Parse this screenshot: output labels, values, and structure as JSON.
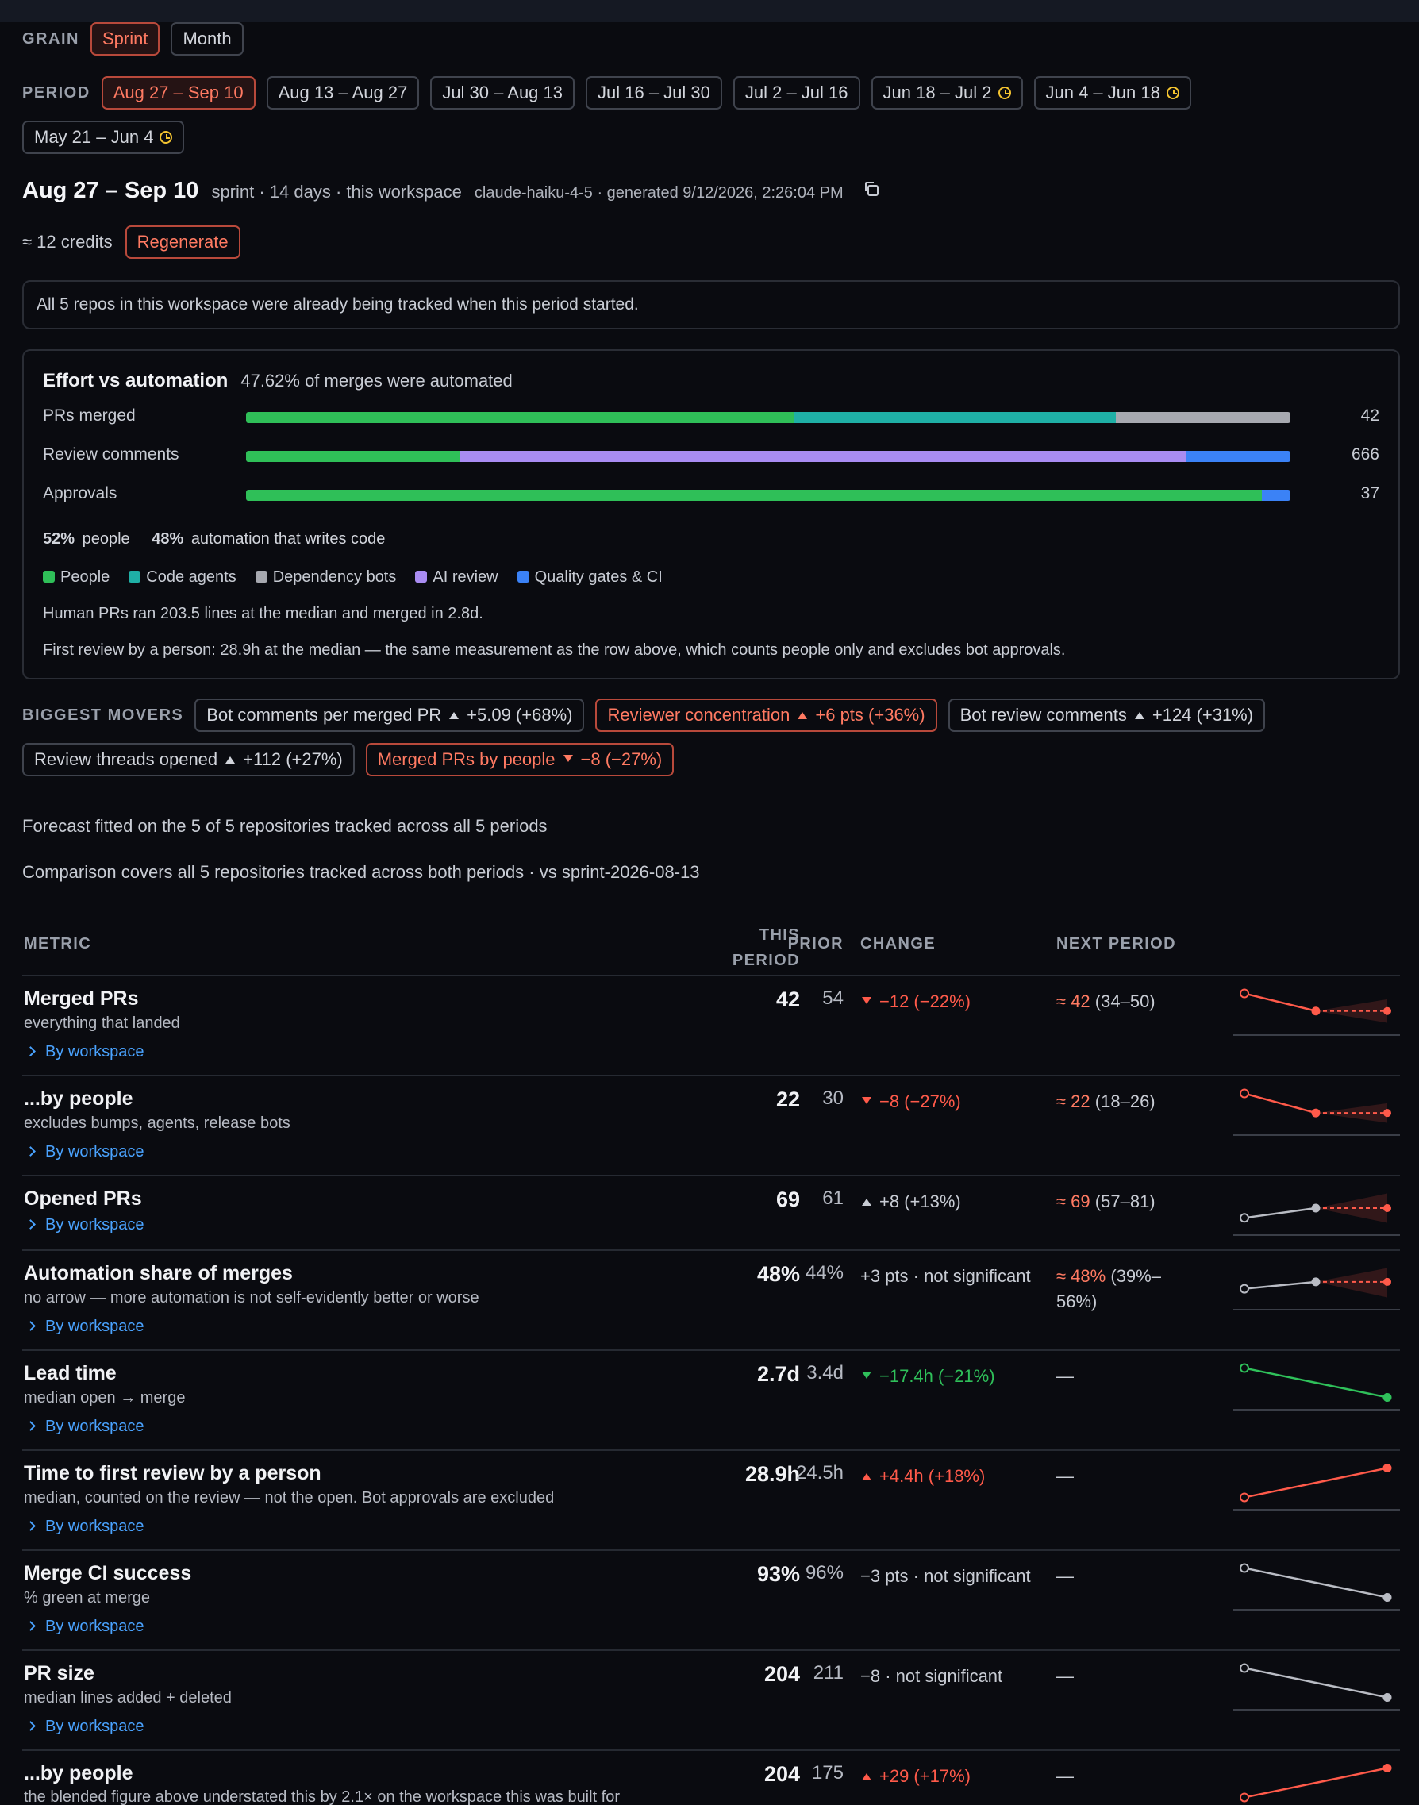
{
  "grain": {
    "label": "GRAIN",
    "options": [
      "Sprint",
      "Month"
    ],
    "selected": "Sprint"
  },
  "period": {
    "label": "PERIOD",
    "options": [
      {
        "text": "Aug 27 – Sep 10",
        "active": true,
        "pending": false
      },
      {
        "text": "Aug 13 – Aug 27",
        "active": false,
        "pending": false
      },
      {
        "text": "Jul 30 – Aug 13",
        "active": false,
        "pending": false
      },
      {
        "text": "Jul 16 – Jul 30",
        "active": false,
        "pending": false
      },
      {
        "text": "Jul 2 – Jul 16",
        "active": false,
        "pending": false
      },
      {
        "text": "Jun 18 – Jul 2",
        "active": false,
        "pending": true
      },
      {
        "text": "Jun 4 – Jun 18",
        "active": false,
        "pending": true
      },
      {
        "text": "May 21 – Jun 4",
        "active": false,
        "pending": true
      }
    ]
  },
  "header": {
    "title": "Aug 27 – Sep 10",
    "meta": "sprint · 14 days · this workspace",
    "model": "claude-haiku-4-5 · generated 9/12/2026, 2:26:04 PM",
    "credits": "≈ 12 credits",
    "regenerate": "Regenerate"
  },
  "notice": "All 5 repos in this workspace were already being tracked when this period started.",
  "effort": {
    "title": "Effort vs automation",
    "subtitle": "47.62% of merges were automated",
    "bars": [
      {
        "label": "PRs merged",
        "total": "42",
        "segments": [
          {
            "name": "People",
            "share": 0.524
          },
          {
            "name": "Code agents",
            "share": 0.309
          },
          {
            "name": "Dependency bots",
            "share": 0.167
          }
        ]
      },
      {
        "label": "Review comments",
        "total": "666",
        "segments": [
          {
            "name": "People",
            "share": 0.205
          },
          {
            "name": "AI review",
            "share": 0.695
          },
          {
            "name": "Quality gates & CI",
            "share": 0.1
          }
        ]
      },
      {
        "label": "Approvals",
        "total": "37",
        "segments": [
          {
            "name": "People",
            "share": 0.973
          },
          {
            "name": "Quality gates & CI",
            "share": 0.027
          }
        ]
      }
    ],
    "split_people_pct": "52%",
    "split_people_text": "people",
    "split_auto_pct": "48%",
    "split_auto_text": "automation that writes code",
    "legend": [
      {
        "name": "People",
        "color": "#2fbf58"
      },
      {
        "name": "Code agents",
        "color": "#1fb0a6"
      },
      {
        "name": "Dependency bots",
        "color": "#a7a9b0"
      },
      {
        "name": "AI review",
        "color": "#a98cf2"
      },
      {
        "name": "Quality gates & CI",
        "color": "#3b82f6"
      }
    ],
    "note1": "Human PRs ran 203.5 lines at the median and merged in 2.8d.",
    "note2": "First review by a person: 28.9h at the median — the same measurement as the row above, which counts people only and excludes bot approvals."
  },
  "movers": {
    "label": "BIGGEST MOVERS",
    "items": [
      {
        "name": "Bot comments per merged PR",
        "dir": "up",
        "delta": "+5.09 (+68%)",
        "flag": false
      },
      {
        "name": "Reviewer concentration",
        "dir": "up",
        "delta": "+6 pts (+36%)",
        "flag": true
      },
      {
        "name": "Bot review comments",
        "dir": "up",
        "delta": "+124 (+31%)",
        "flag": false
      },
      {
        "name": "Review threads opened",
        "dir": "up",
        "delta": "+112 (+27%)",
        "flag": false
      },
      {
        "name": "Merged PRs by people",
        "dir": "down",
        "delta": "−8 (−27%)",
        "flag": true
      }
    ]
  },
  "forecast_note": "Forecast fitted on the 5 of 5 repositories tracked across all 5 periods",
  "comparison_note": "Comparison covers all 5 repositories tracked across both periods · vs sprint-2026-08-13",
  "table": {
    "headers": {
      "metric": "METRIC",
      "this_a": "THIS",
      "this_b": "PERIOD",
      "prior": "PRIOR",
      "change": "CHANGE",
      "next": "NEXT PERIOD"
    },
    "link_label": "By workspace",
    "rows": [
      {
        "name": "Merged PRs",
        "desc": "everything that landed",
        "value": "42",
        "prior": "54",
        "change_dir": "down",
        "change": "−12 (−22%)",
        "change_tone": "bad",
        "next_est": "≈ 42",
        "next_range": "(34–50)",
        "spark": {
          "values": [
            54,
            42
          ],
          "forecast": [
            42,
            34,
            50
          ],
          "tone": "bad"
        }
      },
      {
        "name": "...by people",
        "desc": "excludes bumps, agents, release bots",
        "value": "22",
        "prior": "30",
        "change_dir": "down",
        "change": "−8 (−27%)",
        "change_tone": "bad",
        "next_est": "≈ 22",
        "next_range": "(18–26)",
        "spark": {
          "values": [
            30,
            22
          ],
          "forecast": [
            22,
            18,
            26
          ],
          "tone": "bad"
        }
      },
      {
        "name": "Opened PRs",
        "desc": "",
        "value": "69",
        "prior": "61",
        "change_dir": "up",
        "change": "+8 (+13%)",
        "change_tone": "neutral",
        "next_est": "≈ 69",
        "next_range": "(57–81)",
        "spark": {
          "values": [
            61,
            69
          ],
          "forecast": [
            69,
            57,
            81
          ],
          "tone": "neutral"
        }
      },
      {
        "name": "Automation share of merges",
        "desc": "no arrow — more automation is not self-evidently better or worse",
        "value": "48%",
        "prior": "44%",
        "change_dir": "none",
        "change": "+3 pts · not significant",
        "change_tone": "neutral",
        "next_est": "≈ 48%",
        "next_range": "(39%–56%)",
        "spark": {
          "values": [
            44,
            48
          ],
          "forecast": [
            48,
            39,
            56
          ],
          "tone": "neutral"
        }
      },
      {
        "name": "Lead time",
        "desc": "median open → merge",
        "value": "2.7d",
        "prior": "3.4d",
        "change_dir": "down",
        "change": "−17.4h (−21%)",
        "change_tone": "good",
        "next_est": "—",
        "next_range": "",
        "spark": {
          "values": [
            3.4,
            2.7
          ],
          "forecast": null,
          "tone": "good"
        }
      },
      {
        "name": "Time to first review by a person",
        "desc": "median, counted on the review — not the open. Bot approvals are excluded",
        "value": "28.9h",
        "prior": "24.5h",
        "change_dir": "up",
        "change": "+4.4h (+18%)",
        "change_tone": "bad",
        "next_est": "—",
        "next_range": "",
        "spark": {
          "values": [
            24.5,
            28.9
          ],
          "forecast": null,
          "tone": "bad"
        }
      },
      {
        "name": "Merge CI success",
        "desc": "% green at merge",
        "value": "93%",
        "prior": "96%",
        "change_dir": "none",
        "change": "−3 pts · not significant",
        "change_tone": "neutral",
        "next_est": "—",
        "next_range": "",
        "spark": {
          "values": [
            96,
            93
          ],
          "forecast": null,
          "tone": "neutral"
        }
      },
      {
        "name": "PR size",
        "desc": "median lines added + deleted",
        "value": "204",
        "prior": "211",
        "change_dir": "none",
        "change": "−8 · not significant",
        "change_tone": "neutral",
        "next_est": "—",
        "next_range": "",
        "spark": {
          "values": [
            211,
            204
          ],
          "forecast": null,
          "tone": "neutral"
        }
      },
      {
        "name": "...by people",
        "desc": "the blended figure above understated this by 2.1× on the workspace this was built for",
        "value": "204",
        "prior": "175",
        "change_dir": "up",
        "change": "+29 (+17%)",
        "change_tone": "bad",
        "next_est": "—",
        "next_range": "",
        "spark": {
          "values": [
            175,
            204
          ],
          "forecast": null,
          "tone": "bad"
        }
      }
    ]
  },
  "colors": {
    "bad": "#ff5a4a",
    "good": "#2fc05a",
    "neutral": "#b9bcc4",
    "link": "#4aa3ff",
    "accent": "#ff7a62"
  }
}
